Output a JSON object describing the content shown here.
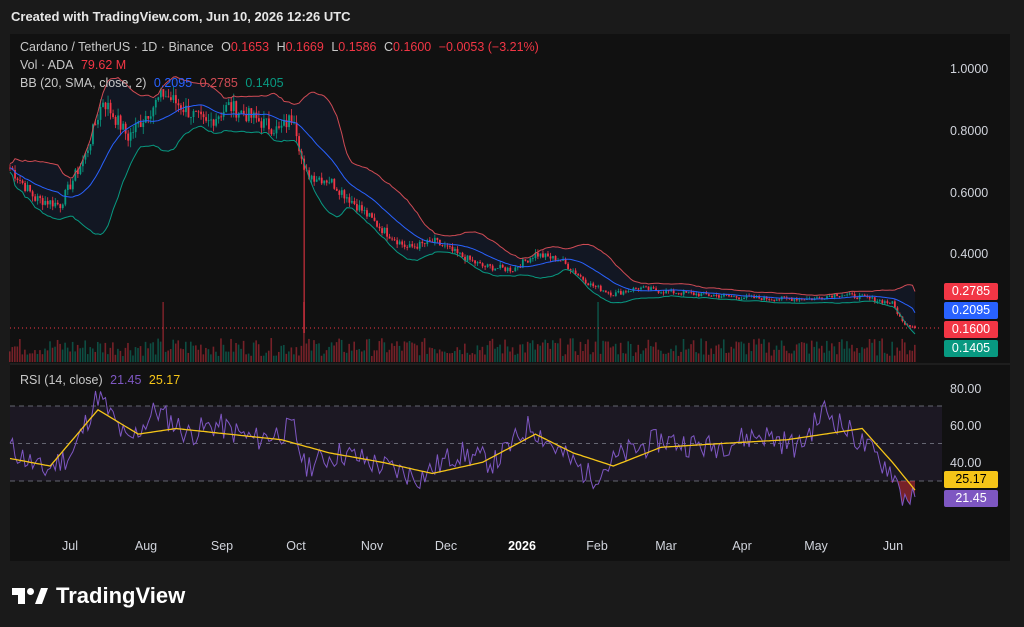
{
  "header": {
    "created_text": "Created with TradingView.com, Jun 10, 2026 12:26 UTC"
  },
  "legend": {
    "symbol": "Cardano / TetherUS · 1D · Binance",
    "o_label": "O",
    "o_val": "0.1653",
    "h_label": "H",
    "h_val": "0.1669",
    "l_label": "L",
    "l_val": "0.1586",
    "c_label": "C",
    "c_val": "0.1600",
    "change": "−0.0053 (−3.21%)",
    "vol_label": "Vol · ADA",
    "vol_val": "79.62 M",
    "bb_label": "BB (20, SMA, close, 2)",
    "bb_basis": "0.2095",
    "bb_upper": "0.2785",
    "bb_lower": "0.1405"
  },
  "rsi_legend": {
    "label": "RSI (14, close)",
    "rsi": "21.45",
    "ma": "25.17"
  },
  "price_axis": {
    "ticks": [
      "1.0000",
      "0.8000",
      "0.6000",
      "0.4000"
    ]
  },
  "rsi_axis": {
    "ticks": [
      "80.00",
      "60.00",
      "40.00"
    ]
  },
  "price_tags": [
    {
      "text": "0.2785",
      "color": "#f23645"
    },
    {
      "text": "0.2095",
      "color": "#2962ff"
    },
    {
      "text": "0.1600",
      "color": "#f23645"
    },
    {
      "text": "0.1405",
      "color": "#089981"
    }
  ],
  "rsi_tags": [
    {
      "text": "25.17",
      "color": "#f5c518",
      "textColor": "#000000"
    },
    {
      "text": "21.45",
      "color": "#7e57c2",
      "textColor": "#ffffff"
    }
  ],
  "time_axis": [
    "Jul",
    "Aug",
    "Sep",
    "Oct",
    "Nov",
    "Dec",
    "2026",
    "Feb",
    "Mar",
    "Apr",
    "May",
    "Jun"
  ],
  "brand": {
    "name": "TradingView"
  },
  "colors": {
    "up": "#089981",
    "down": "#f23645",
    "bb_upper": "#cf4b54",
    "bb_basis": "#2962ff",
    "bb_lower": "#089981",
    "rsi": "#7e57c2",
    "rsi_ma": "#f5c518"
  },
  "chart_data": [
    {
      "type": "candlestick",
      "title": "Cardano / TetherUS · 1D · Binance",
      "ylim": [
        0.16,
        1.0
      ],
      "x": [
        "Jul",
        "Aug",
        "Sep",
        "Oct",
        "Nov",
        "Dec",
        "2026",
        "Feb",
        "Mar",
        "Apr",
        "May",
        "Jun"
      ],
      "close_path": [
        [
          "2025-06-15",
          0.68
        ],
        [
          "2025-06-25",
          0.58
        ],
        [
          "2025-07-05",
          0.56
        ],
        [
          "2025-07-15",
          0.72
        ],
        [
          "2025-07-22",
          0.9
        ],
        [
          "2025-08-01",
          0.78
        ],
        [
          "2025-08-08",
          0.85
        ],
        [
          "2025-08-15",
          0.92
        ],
        [
          "2025-08-22",
          0.88
        ],
        [
          "2025-09-01",
          0.82
        ],
        [
          "2025-09-10",
          0.88
        ],
        [
          "2025-09-20",
          0.84
        ],
        [
          "2025-09-30",
          0.8
        ],
        [
          "2025-10-06",
          0.85
        ],
        [
          "2025-10-10",
          0.66
        ],
        [
          "2025-10-20",
          0.64
        ],
        [
          "2025-11-01",
          0.55
        ],
        [
          "2025-11-10",
          0.48
        ],
        [
          "2025-11-20",
          0.42
        ],
        [
          "2025-12-01",
          0.44
        ],
        [
          "2025-12-10",
          0.4
        ],
        [
          "2025-12-20",
          0.36
        ],
        [
          "2026-01-01",
          0.35
        ],
        [
          "2026-01-10",
          0.4
        ],
        [
          "2026-01-20",
          0.38
        ],
        [
          "2026-02-01",
          0.3
        ],
        [
          "2026-02-10",
          0.27
        ],
        [
          "2026-02-20",
          0.29
        ],
        [
          "2026-03-01",
          0.28
        ],
        [
          "2026-03-15",
          0.27
        ],
        [
          "2026-04-01",
          0.26
        ],
        [
          "2026-04-15",
          0.255
        ],
        [
          "2026-05-01",
          0.255
        ],
        [
          "2026-05-10",
          0.27
        ],
        [
          "2026-05-20",
          0.26
        ],
        [
          "2026-06-01",
          0.24
        ],
        [
          "2026-06-05",
          0.18
        ],
        [
          "2026-06-10",
          0.16
        ]
      ],
      "spike_low": [
        "2025-10-10",
        0.16
      ],
      "last": {
        "open": 0.1653,
        "high": 0.1669,
        "low": 0.1586,
        "close": 0.16
      },
      "bollinger": {
        "basis": 0.2095,
        "upper": 0.2785,
        "lower": 0.1405
      }
    },
    {
      "type": "line",
      "title": "RSI (14, close)",
      "ylim": [
        20,
        80
      ],
      "levels": [
        70,
        50,
        30
      ],
      "series": [
        {
          "name": "RSI",
          "points": [
            [
              "2025-06-15",
              48
            ],
            [
              "2025-06-28",
              35
            ],
            [
              "2025-07-10",
              45
            ],
            [
              "2025-07-20",
              76
            ],
            [
              "2025-08-01",
              50
            ],
            [
              "2025-08-12",
              68
            ],
            [
              "2025-08-25",
              55
            ],
            [
              "2025-09-05",
              60
            ],
            [
              "2025-09-20",
              52
            ],
            [
              "2025-10-06",
              58
            ],
            [
              "2025-10-10",
              38
            ],
            [
              "2025-10-25",
              45
            ],
            [
              "2025-11-10",
              38
            ],
            [
              "2025-11-25",
              32
            ],
            [
              "2025-12-10",
              45
            ],
            [
              "2025-12-25",
              40
            ],
            [
              "2026-01-08",
              60
            ],
            [
              "2026-01-20",
              45
            ],
            [
              "2026-02-01",
              32
            ],
            [
              "2026-02-15",
              45
            ],
            [
              "2026-03-01",
              52
            ],
            [
              "2026-03-20",
              48
            ],
            [
              "2026-04-10",
              55
            ],
            [
              "2026-04-25",
              48
            ],
            [
              "2026-05-05",
              68
            ],
            [
              "2026-05-20",
              50
            ],
            [
              "2026-06-01",
              35
            ],
            [
              "2026-06-05",
              22
            ],
            [
              "2026-06-10",
              21.45
            ]
          ]
        },
        {
          "name": "RSI-based MA",
          "points": [
            [
              "2025-06-15",
              42
            ],
            [
              "2025-07-01",
              38
            ],
            [
              "2025-07-20",
              68
            ],
            [
              "2025-08-05",
              55
            ],
            [
              "2025-08-20",
              58
            ],
            [
              "2025-09-10",
              55
            ],
            [
              "2025-10-01",
              52
            ],
            [
              "2025-10-20",
              45
            ],
            [
              "2025-11-10",
              40
            ],
            [
              "2025-11-30",
              34
            ],
            [
              "2025-12-20",
              40
            ],
            [
              "2026-01-10",
              55
            ],
            [
              "2026-01-25",
              45
            ],
            [
              "2026-02-10",
              38
            ],
            [
              "2026-03-01",
              48
            ],
            [
              "2026-03-25",
              50
            ],
            [
              "2026-04-20",
              52
            ],
            [
              "2026-05-10",
              56
            ],
            [
              "2026-05-20",
              58
            ],
            [
              "2026-06-01",
              40
            ],
            [
              "2026-06-10",
              25.17
            ]
          ]
        }
      ]
    }
  ]
}
